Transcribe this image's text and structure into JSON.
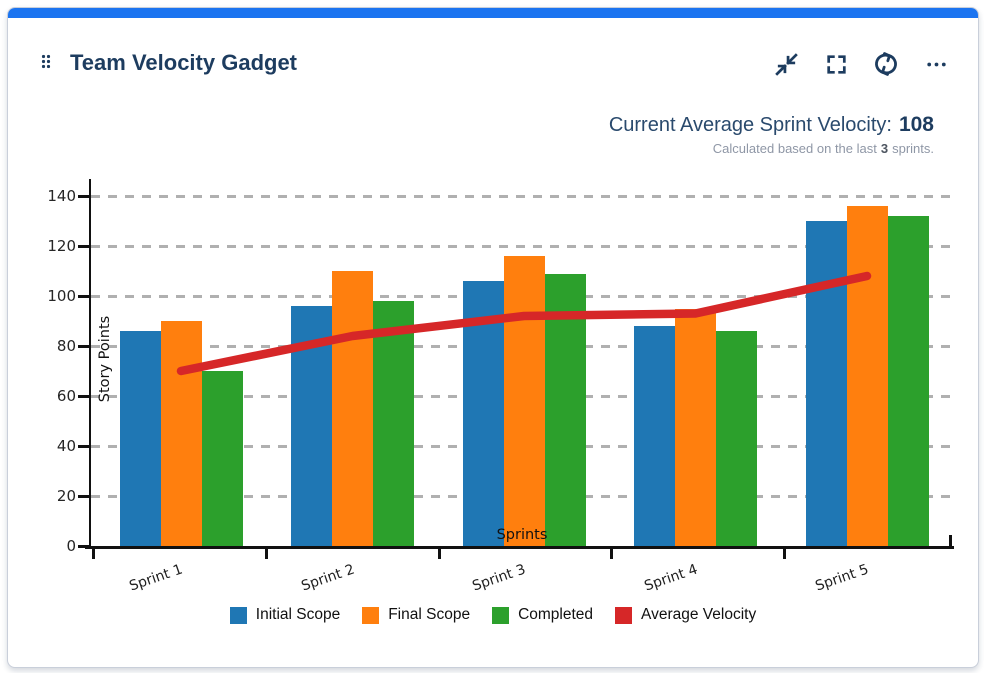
{
  "card": {
    "title": "Team Velocity Gadget",
    "accent_color": "#1b74f0",
    "icon_color": "#1d3c5f",
    "icons": [
      "drag-handle-icon",
      "collapse-icon",
      "fullscreen-icon",
      "refresh-icon",
      "more-icon"
    ]
  },
  "stats": {
    "heading_prefix": "Current Average Sprint Velocity:",
    "heading_value": "108",
    "subtitle_prefix": "Calculated based on the last",
    "subtitle_bold": "3",
    "subtitle_suffix": "sprints."
  },
  "chart_data": {
    "type": "bar",
    "categories": [
      "Sprint 1",
      "Sprint 2",
      "Sprint 3",
      "Sprint 4",
      "Sprint 5"
    ],
    "series": [
      {
        "name": "Initial Scope",
        "type": "bar",
        "color": "#1f77b4",
        "values": [
          86,
          96,
          106,
          88,
          130
        ]
      },
      {
        "name": "Final Scope",
        "type": "bar",
        "color": "#ff7f0e",
        "values": [
          90,
          110,
          116,
          95,
          136
        ]
      },
      {
        "name": "Completed",
        "type": "bar",
        "color": "#2ca02c",
        "values": [
          70,
          98,
          109,
          86,
          132
        ]
      },
      {
        "name": "Average Velocity",
        "type": "line",
        "color": "#d62728",
        "values": [
          70,
          84,
          92,
          93,
          108
        ]
      }
    ],
    "xlabel": "Sprints",
    "ylabel": "Story Points",
    "ylim": [
      0,
      140
    ],
    "yticks": [
      0,
      20,
      40,
      60,
      80,
      100,
      120,
      140
    ],
    "grid": "dashed-horizontal",
    "legend_position": "bottom"
  }
}
